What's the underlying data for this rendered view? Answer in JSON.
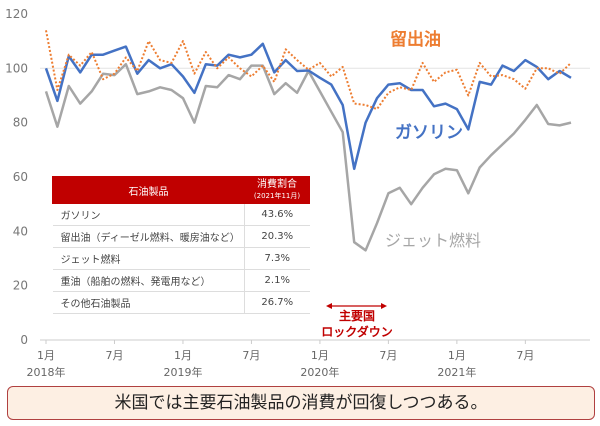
{
  "chart_data": {
    "type": "line",
    "title": "",
    "xlabel": "",
    "ylabel": "",
    "ylim": [
      0,
      120
    ],
    "yticks": [
      "0",
      "20",
      "40",
      "60",
      "80",
      "100",
      "120"
    ],
    "xticks": [
      {
        "month": "1月",
        "year": "2018年"
      },
      {
        "month": "7月",
        "year": ""
      },
      {
        "month": "1月",
        "year": "2019年"
      },
      {
        "month": "7月",
        "year": ""
      },
      {
        "month": "1月",
        "year": "2020年"
      },
      {
        "month": "7月",
        "year": ""
      },
      {
        "month": "1月",
        "year": "2021年"
      },
      {
        "month": "7月",
        "year": ""
      }
    ],
    "x_range": [
      "2018-01",
      "2021-11"
    ],
    "grid": "reference line at 100",
    "series": [
      {
        "name": "留出油",
        "color": "#ed7d31",
        "style": "dotted",
        "values": [
          114,
          92,
          105,
          101,
          106,
          96,
          98,
          104,
          99,
          110,
          103,
          102,
          110,
          98,
          106,
          100,
          104,
          100,
          97,
          101,
          95,
          107,
          103,
          99.5,
          102,
          97,
          100.5,
          87,
          86.5,
          85,
          91,
          93,
          92,
          102,
          95,
          98.5,
          99.5,
          90,
          102,
          97,
          97.5,
          96,
          92.5,
          100,
          100,
          98,
          102
        ]
      },
      {
        "name": "ガソリン",
        "color": "#4472c4",
        "style": "solid",
        "values": [
          100,
          88,
          104.5,
          98.5,
          105,
          105,
          106.5,
          108,
          98,
          103,
          100,
          101.5,
          97,
          91,
          101.5,
          101,
          105,
          104,
          105,
          109,
          98.5,
          103,
          99,
          99.2,
          96.5,
          94,
          86.5,
          63,
          80,
          89,
          94,
          94.5,
          92,
          92,
          86,
          87,
          85,
          77.5,
          95,
          94,
          101,
          99,
          103,
          100.5,
          96,
          99,
          96.5
        ]
      },
      {
        "name": "ジェット燃料",
        "color": "#a6a6a6",
        "style": "solid",
        "values": [
          91.5,
          78.5,
          93.5,
          87,
          91.5,
          98,
          97.5,
          101.5,
          90.5,
          91.5,
          93,
          92,
          89,
          80,
          93.5,
          93,
          97.5,
          96,
          101,
          101,
          90.5,
          94.5,
          91,
          99,
          91.5,
          84,
          76.5,
          36,
          33,
          43,
          54,
          56,
          50,
          56,
          61,
          63,
          62.5,
          54,
          63.5,
          68,
          72,
          76,
          81,
          86.5,
          79.5,
          79,
          80
        ]
      }
    ],
    "annotation": {
      "line1": "主要国",
      "line2": "ロックダウン",
      "color": "#c00000"
    }
  },
  "table": {
    "header": {
      "product": "石油製品",
      "share": "消費割合",
      "share_note": "(2021年11月)"
    },
    "rows": [
      {
        "product": "ガソリン",
        "share": "43.6%"
      },
      {
        "product": "留出油（ディーゼル燃料、暖房油など）",
        "share": "20.3%"
      },
      {
        "product": "ジェット燃料",
        "share": "7.3%"
      },
      {
        "product": "重油（船舶の燃料、発電用など）",
        "share": "2.1%"
      },
      {
        "product": "その他石油製品",
        "share": "26.7%"
      }
    ]
  },
  "message": "米国では主要石油製品の消費が回復しつつある。"
}
